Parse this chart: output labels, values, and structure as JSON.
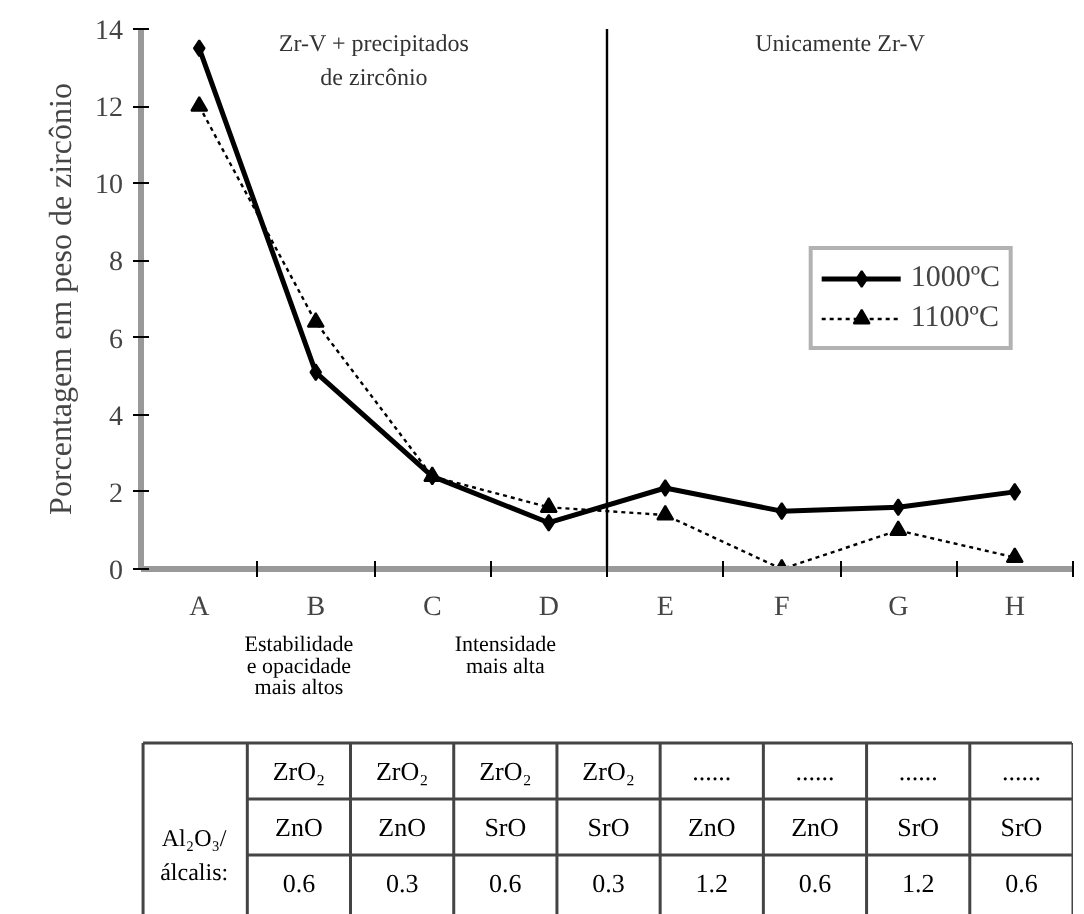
{
  "chart_data": {
    "type": "line",
    "ylabel": "Porcentagem em peso de zircônio",
    "categories": [
      "A",
      "B",
      "C",
      "D",
      "E",
      "F",
      "G",
      "H"
    ],
    "series": [
      {
        "name": "1000ºC",
        "color": "#000000",
        "marker": "diamond",
        "line_style": "solid",
        "values": [
          13.5,
          5.1,
          2.4,
          1.2,
          2.1,
          1.5,
          1.6,
          2.0
        ]
      },
      {
        "name": "1100ºC",
        "color": "#000000",
        "marker": "triangle",
        "line_style": "dotted",
        "values": [
          12.0,
          6.4,
          2.4,
          1.6,
          1.4,
          0.0,
          1.0,
          0.3
        ]
      }
    ],
    "ylim": [
      0,
      14
    ],
    "yticks": [
      0,
      2,
      4,
      6,
      8,
      10,
      12,
      14
    ],
    "grid": false,
    "legend": "right",
    "annotations": [
      "Zr-V + precipitados\nde zircônio",
      "Unicamente Zr-V",
      "Estabilidade\ne opacidade\nmais altos",
      "Intensidade\nmais alta",
      "Al₂O₃/\nálcalis:",
      "ZrO₂",
      "ZnO",
      "0.6",
      "ZrO₂",
      "ZnO",
      "0.3",
      "ZrO₂",
      "SrO",
      "0.6",
      "ZrO₂",
      "SrO",
      "0.3",
      "......",
      "ZnO",
      "1.2",
      "......",
      "ZnO",
      "0.6",
      "......",
      "SrO",
      "1.2",
      "......",
      "SrO",
      "0.6"
    ]
  }
}
